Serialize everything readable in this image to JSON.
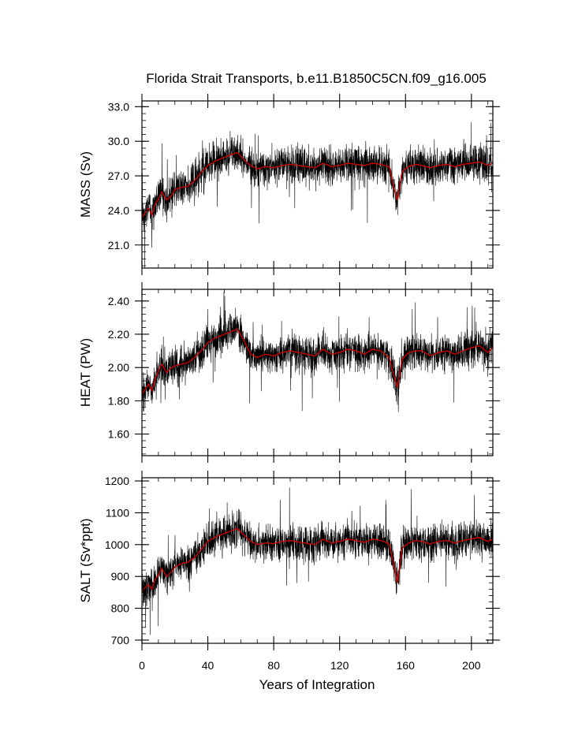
{
  "figure": {
    "title": "Florida Strait Transports, b.e11.B1850C5CN.f09_g16.005",
    "xlabel": "Years of Integration"
  },
  "chart_data": [
    {
      "type": "line",
      "ylabel": "MASS (Sv)",
      "xlim": [
        0,
        213
      ],
      "ylim": [
        19.0,
        33.5
      ],
      "yticks": [
        "21.0",
        "24.0",
        "27.0",
        "30.0",
        "33.0"
      ],
      "xticks": [
        "0",
        "40",
        "80",
        "120",
        "160",
        "200"
      ],
      "series": [
        {
          "role": "monthly",
          "color": "#000000"
        },
        {
          "role": "annual-mean",
          "color": "#cc0000",
          "x": [
            0,
            2,
            4,
            6,
            8,
            10,
            12,
            15,
            18,
            20,
            24,
            28,
            32,
            36,
            40,
            45,
            50,
            55,
            58,
            62,
            66,
            70,
            75,
            80,
            85,
            90,
            95,
            100,
            105,
            110,
            115,
            120,
            125,
            130,
            135,
            140,
            145,
            150,
            153,
            155,
            158,
            162,
            166,
            170,
            175,
            180,
            185,
            190,
            195,
            200,
            205,
            210,
            213
          ],
          "values": [
            23.4,
            23.8,
            24.2,
            23.6,
            24.5,
            25.0,
            25.6,
            24.9,
            25.3,
            25.8,
            26.0,
            26.1,
            26.6,
            27.3,
            27.9,
            28.3,
            28.6,
            28.9,
            29.0,
            28.4,
            27.9,
            27.6,
            27.8,
            27.7,
            27.9,
            28.0,
            27.9,
            27.8,
            27.7,
            28.1,
            27.8,
            27.9,
            28.1,
            28.0,
            27.9,
            28.1,
            28.0,
            27.8,
            25.9,
            24.9,
            27.4,
            27.8,
            28.0,
            27.9,
            27.7,
            27.9,
            28.0,
            27.8,
            28.0,
            28.1,
            28.2,
            27.9,
            28.1
          ]
        }
      ]
    },
    {
      "type": "line",
      "ylabel": "HEAT (PW)",
      "xlim": [
        0,
        213
      ],
      "ylim": [
        1.47,
        2.47
      ],
      "yticks": [
        "1.60",
        "1.80",
        "2.00",
        "2.20",
        "2.40"
      ],
      "xticks": [
        "0",
        "40",
        "80",
        "120",
        "160",
        "200"
      ],
      "series": [
        {
          "role": "monthly",
          "color": "#000000"
        },
        {
          "role": "annual-mean",
          "color": "#cc0000",
          "x": [
            0,
            2,
            4,
            6,
            8,
            10,
            12,
            15,
            18,
            20,
            24,
            28,
            32,
            36,
            40,
            45,
            50,
            55,
            58,
            62,
            66,
            70,
            75,
            80,
            85,
            90,
            95,
            100,
            105,
            110,
            115,
            120,
            125,
            130,
            135,
            140,
            145,
            150,
            153,
            155,
            158,
            162,
            166,
            170,
            175,
            180,
            185,
            190,
            195,
            200,
            205,
            210,
            213
          ],
          "values": [
            1.84,
            1.87,
            1.9,
            1.86,
            1.93,
            1.98,
            2.02,
            1.97,
            2.0,
            2.01,
            2.02,
            2.03,
            2.06,
            2.1,
            2.15,
            2.18,
            2.2,
            2.22,
            2.23,
            2.16,
            2.08,
            2.06,
            2.08,
            2.07,
            2.09,
            2.1,
            2.09,
            2.08,
            2.07,
            2.11,
            2.08,
            2.09,
            2.11,
            2.1,
            2.08,
            2.11,
            2.1,
            2.06,
            1.95,
            1.88,
            2.05,
            2.09,
            2.1,
            2.1,
            2.07,
            2.09,
            2.1,
            2.08,
            2.1,
            2.12,
            2.13,
            2.09,
            2.12
          ]
        }
      ]
    },
    {
      "type": "line",
      "ylabel": "SALT (Sv*ppt)",
      "xlim": [
        0,
        213
      ],
      "ylim": [
        690,
        1210
      ],
      "yticks": [
        "700",
        "800",
        "900",
        "1000",
        "1100",
        "1200"
      ],
      "xticks": [
        "0",
        "40",
        "80",
        "120",
        "160",
        "200"
      ],
      "series": [
        {
          "role": "monthly",
          "color": "#000000"
        },
        {
          "role": "annual-mean",
          "color": "#cc0000",
          "x": [
            0,
            2,
            4,
            6,
            8,
            10,
            12,
            15,
            18,
            20,
            24,
            28,
            32,
            36,
            40,
            45,
            50,
            55,
            58,
            62,
            66,
            70,
            75,
            80,
            85,
            90,
            95,
            100,
            105,
            110,
            115,
            120,
            125,
            130,
            135,
            140,
            145,
            150,
            153,
            155,
            158,
            162,
            166,
            170,
            175,
            180,
            185,
            190,
            195,
            200,
            205,
            210,
            213
          ],
          "values": [
            855,
            865,
            875,
            860,
            890,
            905,
            925,
            900,
            915,
            930,
            940,
            945,
            960,
            985,
            1010,
            1025,
            1035,
            1045,
            1050,
            1030,
            1010,
            1000,
            1005,
            1003,
            1010,
            1013,
            1008,
            1004,
            1000,
            1017,
            1005,
            1010,
            1017,
            1013,
            1007,
            1017,
            1013,
            1003,
            935,
            880,
            990,
            1005,
            1013,
            1010,
            1002,
            1010,
            1013,
            1005,
            1013,
            1018,
            1022,
            1010,
            1017
          ]
        }
      ]
    }
  ]
}
